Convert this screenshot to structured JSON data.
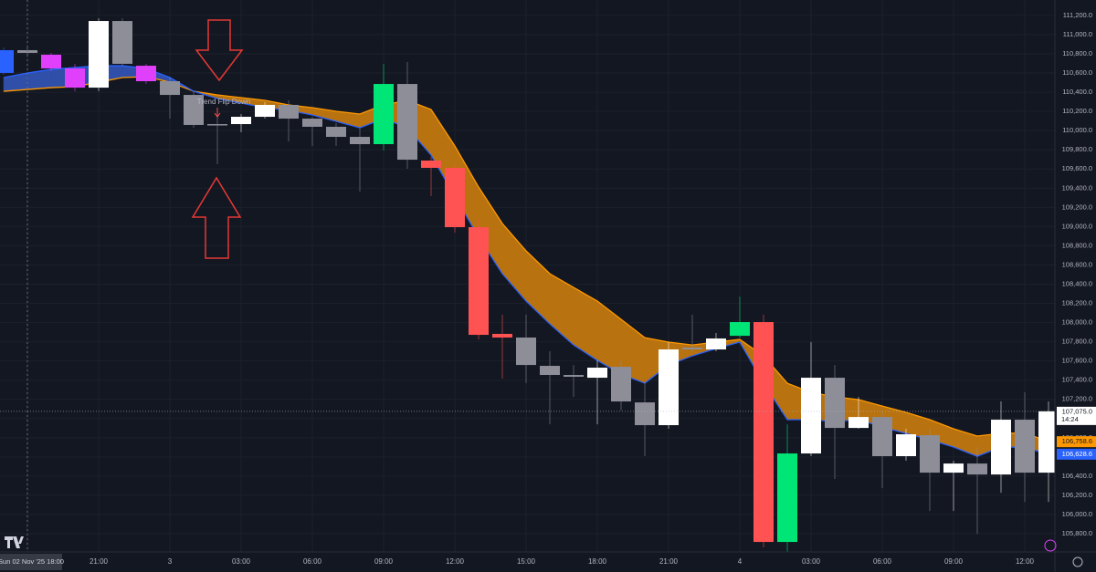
{
  "chart_data": {
    "type": "candlestick",
    "x": [
      "17:00",
      "18:00",
      "19:00",
      "20:00",
      "21:00",
      "22:00",
      "23:00",
      "00:00",
      "01:00",
      "02:00",
      "03:00",
      "04:00",
      "05:00",
      "06:00",
      "07:00",
      "08:00",
      "09:00",
      "10:00",
      "11:00",
      "12:00",
      "13:00",
      "14:00",
      "15:00",
      "16:00",
      "17:00",
      "18:00",
      "19:00",
      "20:00",
      "21:00",
      "22:00",
      "23:00",
      "00:00",
      "01:00",
      "02:00",
      "03:00",
      "04:00",
      "05:00",
      "06:00",
      "07:00",
      "08:00",
      "09:00",
      "10:00",
      "11:00",
      "12:00",
      "13:00"
    ],
    "open": [
      110601,
      110838,
      110791,
      110648,
      110448,
      111142,
      110676,
      110515,
      110372,
      110059,
      110068,
      110144,
      110268,
      110125,
      110040,
      109935,
      109859,
      110486,
      109688,
      109612,
      108994,
      107882,
      107844,
      107549,
      107454,
      107425,
      107539,
      107168,
      106931,
      107720,
      107720,
      107862,
      108005,
      105714,
      106636,
      107425,
      106902,
      107016,
      106608,
      106826,
      106436,
      106531,
      106417,
      106988,
      106436
    ],
    "high": [
      110867,
      110886,
      110810,
      110696,
      111171,
      111171,
      110696,
      110553,
      110410,
      110220,
      110173,
      110296,
      110315,
      110144,
      110078,
      110030,
      110696,
      110715,
      109726,
      109650,
      109079,
      108081,
      108081,
      107701,
      107558,
      107606,
      107606,
      107368,
      107796,
      108081,
      107891,
      108271,
      108081,
      106940,
      107796,
      107558,
      107225,
      107083,
      106893,
      106893,
      106560,
      106703,
      107178,
      107273,
      107178
    ],
    "low": [
      110582,
      110791,
      110620,
      110410,
      110410,
      110676,
      110486,
      110125,
      110030,
      109650,
      109983,
      110125,
      109887,
      109840,
      109840,
      109365,
      109792,
      109602,
      109317,
      108937,
      107824,
      107416,
      107368,
      106940,
      107225,
      106940,
      107083,
      106608,
      106893,
      107701,
      107701,
      107844,
      105657,
      105609,
      106608,
      106370,
      106893,
      106275,
      106560,
      106037,
      106037,
      105799,
      106227,
      106132,
      106132
    ],
    "close": [
      110838,
      110810,
      110648,
      110448,
      111142,
      110696,
      110515,
      110372,
      110059,
      110068,
      110144,
      110268,
      110125,
      110040,
      109935,
      109859,
      110486,
      109697,
      109612,
      108994,
      107872,
      107844,
      107558,
      107454,
      107435,
      107530,
      107178,
      106931,
      107720,
      107739,
      107834,
      108005,
      105714,
      106636,
      107425,
      106902,
      107016,
      106608,
      106836,
      106436,
      106531,
      106417,
      106988,
      106436,
      107075
    ],
    "candle_colors": [
      "#2962ff",
      "#8e8e99",
      "#e040fb",
      "#e040fb",
      "#ffffff",
      "#8e8e99",
      "#e040fb",
      "#8e8e99",
      "#8e8e99",
      "#8e8e99",
      "#ffffff",
      "#ffffff",
      "#8e8e99",
      "#8e8e99",
      "#8e8e99",
      "#8e8e99",
      "#00e676",
      "#8e8e99",
      "#ff5252",
      "#ff5252",
      "#ff5252",
      "#ff5252",
      "#8e8e99",
      "#8e8e99",
      "#8e8e99",
      "#ffffff",
      "#8e8e99",
      "#8e8e99",
      "#ffffff",
      "#8e8e99",
      "#ffffff",
      "#00e676",
      "#ff5252",
      "#00e676",
      "#ffffff",
      "#8e8e99",
      "#ffffff",
      "#8e8e99",
      "#ffffff",
      "#8e8e99",
      "#ffffff",
      "#8e8e99",
      "#ffffff",
      "#8e8e99",
      "#ffffff"
    ],
    "cloud": {
      "line_a": [
        110410,
        110429,
        110448,
        110458,
        110505,
        110553,
        110562,
        110505,
        110410,
        110372,
        110344,
        110315,
        110268,
        110239,
        110201,
        110173,
        110268,
        110315,
        110220,
        109840,
        109412,
        109032,
        108747,
        108509,
        108366,
        108224,
        108034,
        107843,
        107796,
        107767,
        107796,
        107824,
        107653,
        107368,
        107273,
        107226,
        107197,
        107130,
        107064,
        106988,
        106893,
        106817,
        106845,
        106850,
        106758.6
      ],
      "line_b": [
        110553,
        110600,
        110638,
        110657,
        110676,
        110676,
        110648,
        110553,
        110410,
        110334,
        110287,
        110239,
        110211,
        110163,
        110097,
        110030,
        110125,
        110030,
        109745,
        109317,
        108889,
        108509,
        108224,
        107986,
        107767,
        107606,
        107463,
        107368,
        107558,
        107653,
        107729,
        107796,
        107368,
        106988,
        106988,
        106969,
        106988,
        106912,
        106845,
        106779,
        106703,
        106607,
        106703,
        106700,
        106628.6
      ],
      "line_a_color": "#ff9800",
      "line_b_color": "#2962ff",
      "fill_a_above": "#b8720f",
      "fill_b_above": "#2f4fa8"
    },
    "ylim": [
      105610,
      111361
    ],
    "yticks": [
      {
        "value": 105800,
        "label": "105,800.0"
      },
      {
        "value": 106000,
        "label": "106,000.0"
      },
      {
        "value": 106200,
        "label": "106,200.0"
      },
      {
        "value": 106400,
        "label": "106,400.0"
      },
      {
        "value": 106600,
        "label": "106,600.0"
      },
      {
        "value": 106800,
        "label": "106,800.0"
      },
      {
        "value": 107000,
        "label": "107,000.0"
      },
      {
        "value": 107200,
        "label": "107,200.0"
      },
      {
        "value": 107400,
        "label": "107,400.0"
      },
      {
        "value": 107600,
        "label": "107,600.0"
      },
      {
        "value": 107800,
        "label": "107,800.0"
      },
      {
        "value": 108000,
        "label": "108,000.0"
      },
      {
        "value": 108200,
        "label": "108,200.0"
      },
      {
        "value": 108400,
        "label": "108,400.0"
      },
      {
        "value": 108600,
        "label": "108,600.0"
      },
      {
        "value": 108800,
        "label": "108,800.0"
      },
      {
        "value": 109000,
        "label": "109,000.0"
      },
      {
        "value": 109200,
        "label": "109,200.0"
      },
      {
        "value": 109400,
        "label": "109,400.0"
      },
      {
        "value": 109600,
        "label": "109,600.0"
      },
      {
        "value": 109800,
        "label": "109,800.0"
      },
      {
        "value": 110000,
        "label": "110,000.0"
      },
      {
        "value": 110200,
        "label": "110,200.0"
      },
      {
        "value": 110400,
        "label": "110,400.0"
      },
      {
        "value": 110600,
        "label": "110,600.0"
      },
      {
        "value": 110800,
        "label": "110,800.0"
      },
      {
        "value": 111000,
        "label": "111,000.0"
      },
      {
        "value": 111200,
        "label": "111,200.0"
      }
    ],
    "xticks": [
      {
        "value": 1,
        "label": "Sun 02 Nov '25   18:00"
      },
      {
        "value": 4,
        "label": "21:00"
      },
      {
        "value": 7,
        "label": "3"
      },
      {
        "value": 10,
        "label": "03:00"
      },
      {
        "value": 13,
        "label": "06:00"
      },
      {
        "value": 16,
        "label": "09:00"
      },
      {
        "value": 19,
        "label": "12:00"
      },
      {
        "value": 22,
        "label": "15:00"
      },
      {
        "value": 25,
        "label": "18:00"
      },
      {
        "value": 28,
        "label": "21:00"
      },
      {
        "value": 31,
        "label": "4"
      },
      {
        "value": 34,
        "label": "03:00"
      },
      {
        "value": 37,
        "label": "06:00"
      },
      {
        "value": 40,
        "label": "09:00"
      },
      {
        "value": 43,
        "label": "12:00"
      }
    ],
    "grid": true,
    "annotation": "Trend Flip Down",
    "last_price": {
      "value": 107075,
      "label": "107,075.0",
      "countdown": "14:24"
    },
    "price_labels": [
      {
        "value": 106758.6,
        "label": "106,758.6",
        "color": "#ff9800"
      },
      {
        "value": 106628.6,
        "label": "106,628.6",
        "color": "#2962ff"
      }
    ]
  }
}
